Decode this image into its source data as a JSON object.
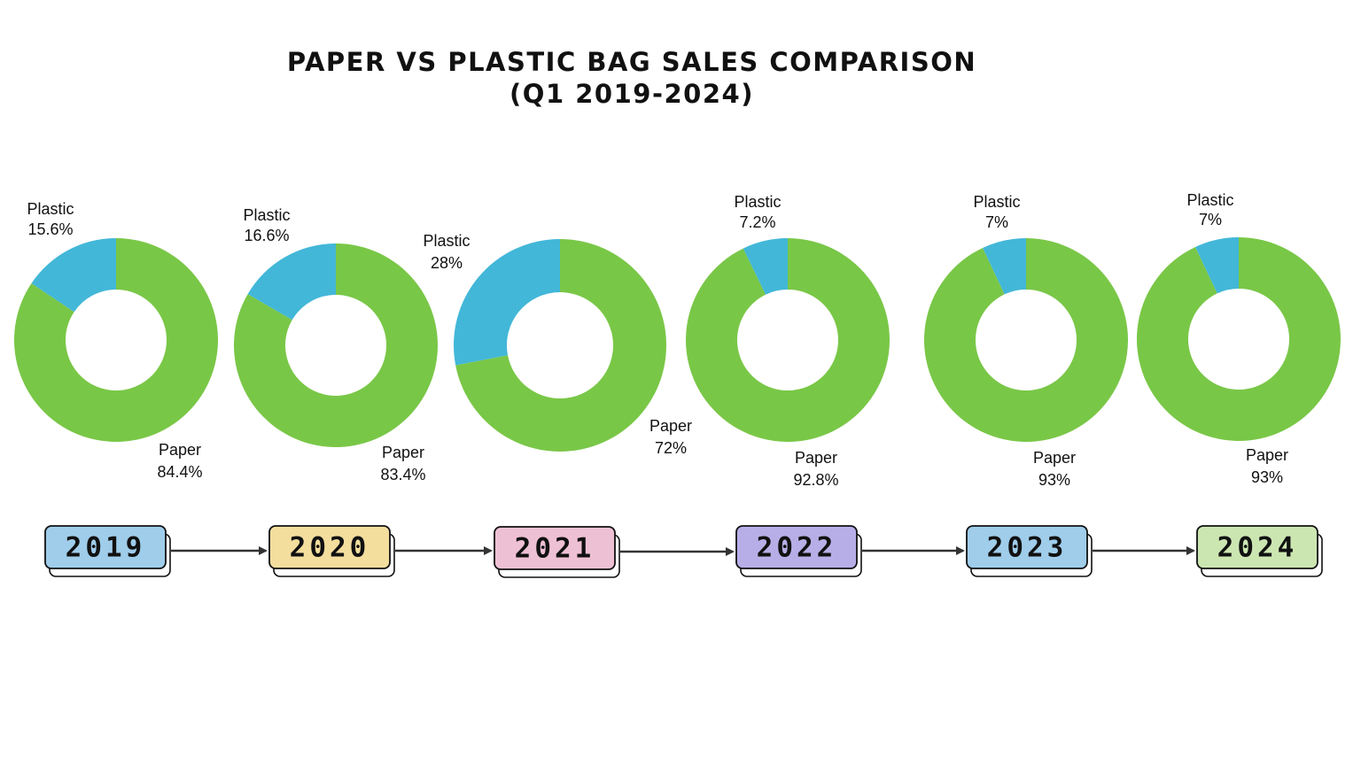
{
  "title": {
    "line1": "PAPER VS PLASTIC BAG SALES COMPARISON",
    "line2": "(Q1 2019-2024)"
  },
  "colors": {
    "paper": "#79C747",
    "plastic": "#42B7D8"
  },
  "chart_data": [
    {
      "type": "pie",
      "year": "2019",
      "badge_color": "#9FCDEA",
      "categories": [
        "Paper",
        "Plastic"
      ],
      "values": [
        84.4,
        15.6
      ],
      "labels": [
        "84.4%",
        "15.6%"
      ]
    },
    {
      "type": "pie",
      "year": "2020",
      "badge_color": "#F3DE9E",
      "categories": [
        "Paper",
        "Plastic"
      ],
      "values": [
        83.4,
        16.6
      ],
      "labels": [
        "83.4%",
        "16.6%"
      ]
    },
    {
      "type": "pie",
      "year": "2021",
      "badge_color": "#EEC0D4",
      "categories": [
        "Paper",
        "Plastic"
      ],
      "values": [
        72,
        28
      ],
      "labels": [
        "72%",
        "28%"
      ]
    },
    {
      "type": "pie",
      "year": "2022",
      "badge_color": "#B7AEE7",
      "categories": [
        "Paper",
        "Plastic"
      ],
      "values": [
        92.8,
        7.2
      ],
      "labels": [
        "92.8%",
        "7.2%"
      ]
    },
    {
      "type": "pie",
      "year": "2023",
      "badge_color": "#9FCDEA",
      "categories": [
        "Paper",
        "Plastic"
      ],
      "values": [
        93,
        7
      ],
      "labels": [
        "93%",
        "7%"
      ]
    },
    {
      "type": "pie",
      "year": "2024",
      "badge_color": "#CCE6B2",
      "categories": [
        "Paper",
        "Plastic"
      ],
      "values": [
        93,
        7
      ],
      "labels": [
        "93%",
        "7%"
      ]
    }
  ]
}
